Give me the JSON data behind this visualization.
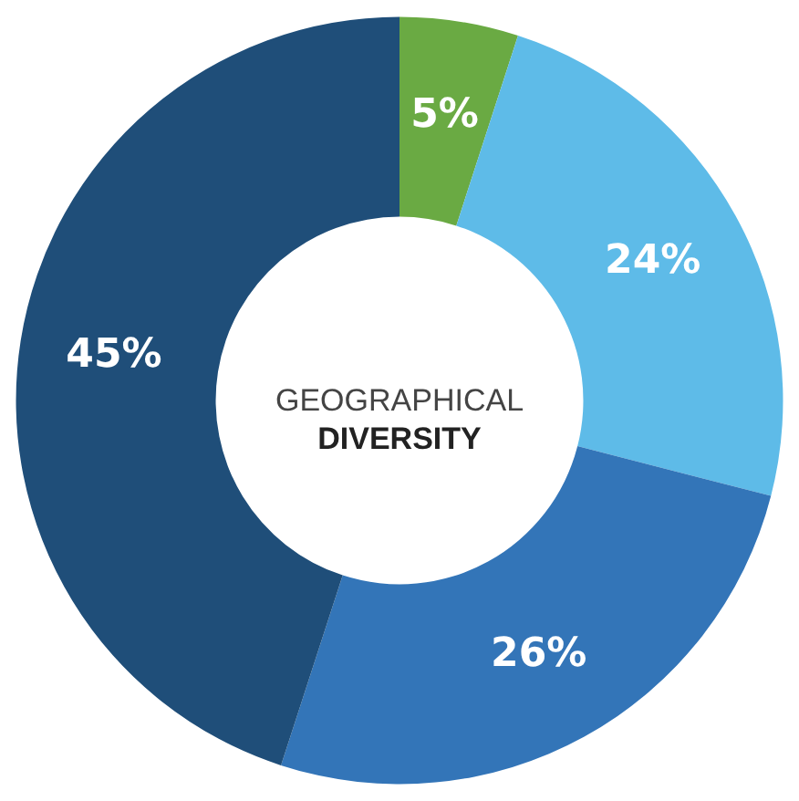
{
  "chart_data": {
    "type": "donut",
    "title": "GEOGRAPHICAL",
    "subtitle": "DIVERSITY",
    "categories": [
      null,
      null,
      null,
      null
    ],
    "values": [
      5,
      24,
      26,
      45
    ],
    "colors": [
      "#6aaa43",
      "#5ebbe8",
      "#3375b8",
      "#1f4e79"
    ],
    "value_labels": [
      "5%",
      "24%",
      "26%",
      "45%"
    ]
  }
}
